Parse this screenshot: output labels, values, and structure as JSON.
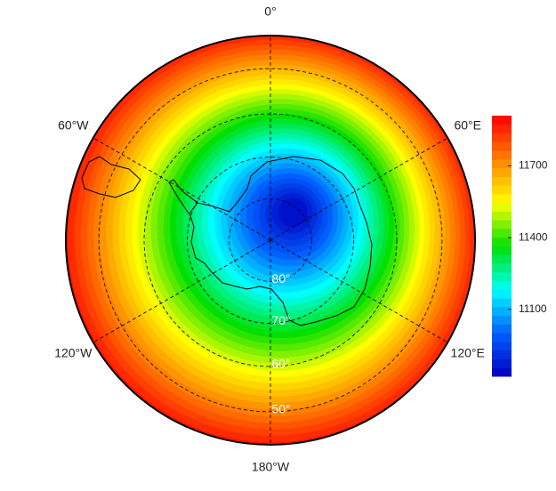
{
  "map": {
    "longitude_labels": [
      {
        "value": 0,
        "label": "0°"
      },
      {
        "value": 60,
        "label": "60°E"
      },
      {
        "value": 120,
        "label": "120°E"
      },
      {
        "value": 180,
        "label": "180°W"
      },
      {
        "value": -120,
        "label": "120°W"
      },
      {
        "value": -60,
        "label": "60°W"
      }
    ],
    "latitude_labels": [
      {
        "value": 80,
        "label": "80°"
      },
      {
        "value": 70,
        "label": "70°"
      },
      {
        "value": 60,
        "label": "60°"
      },
      {
        "value": 50,
        "label": "50°"
      }
    ],
    "colormap": [
      "#0000c0",
      "#0060ff",
      "#00ffff",
      "#00e000",
      "#ffff00",
      "#ff8000",
      "#ff0000"
    ],
    "colorbar": {
      "lim": [
        10820,
        11910
      ],
      "ticks": [
        11100,
        11400,
        11700
      ]
    }
  }
}
